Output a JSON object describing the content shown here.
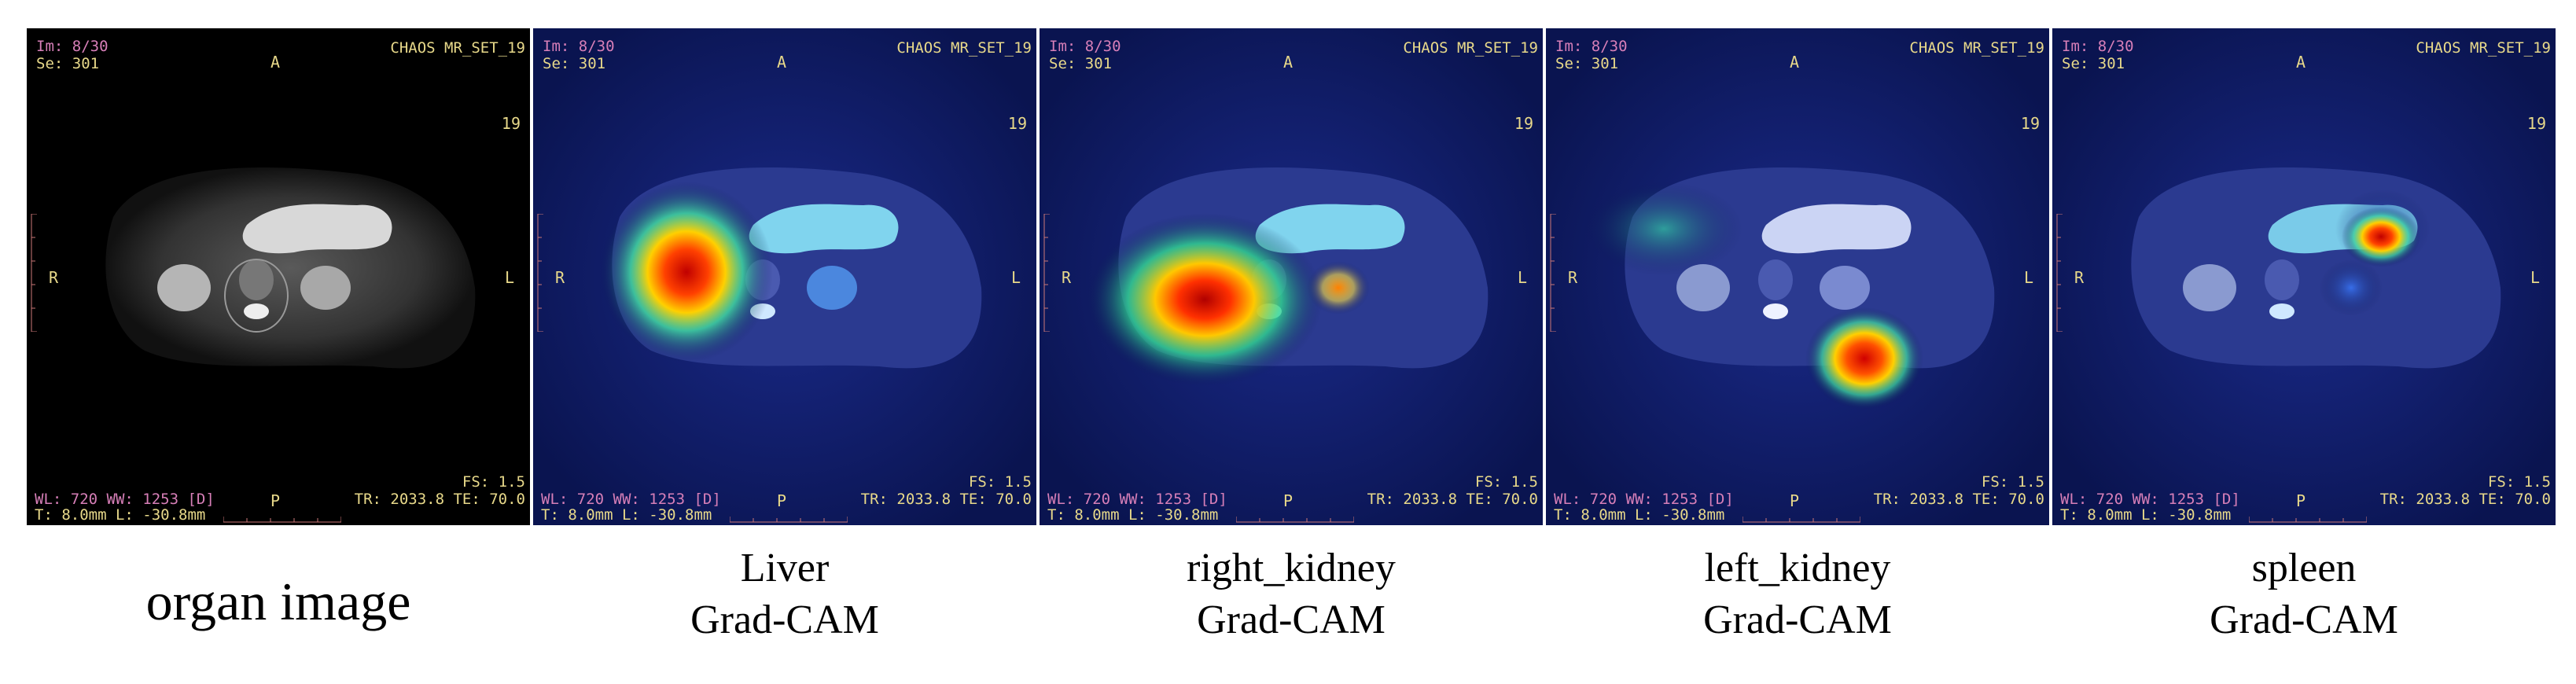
{
  "overlay": {
    "image_index": "Im: 8/30",
    "series": "Se: 301",
    "dataset": "CHAOS MR_SET_19",
    "anterior": "A",
    "posterior": "P",
    "right": "R",
    "left": "L",
    "slice_number": "19",
    "fs": "FS: 1.5",
    "tr_te": "TR: 2033.8 TE: 70.0",
    "wl_ww": "WL: 720 WW: 1253 [D]",
    "thickness_location": "T: 8.0mm L: -30.8mm"
  },
  "panels": [
    {
      "name": "organ-image",
      "caption": [
        "organ image"
      ],
      "heatmap": "none"
    },
    {
      "name": "liver-gradcam",
      "caption": [
        "Liver",
        "Grad-CAM"
      ],
      "heatmap": "liver"
    },
    {
      "name": "right-kidney-gradcam",
      "caption": [
        "right_kidney",
        "Grad-CAM"
      ],
      "heatmap": "right-kidney"
    },
    {
      "name": "left-kidney-gradcam",
      "caption": [
        "left_kidney",
        "Grad-CAM"
      ],
      "heatmap": "left-kidney"
    },
    {
      "name": "spleen-gradcam",
      "caption": [
        "spleen",
        "Grad-CAM"
      ],
      "heatmap": "spleen"
    }
  ],
  "colors": {
    "background_plain": "#000000",
    "background_cam": "#0a1450",
    "overlay_yellow": "#e8d98a",
    "overlay_pink": "#d77fb8"
  }
}
